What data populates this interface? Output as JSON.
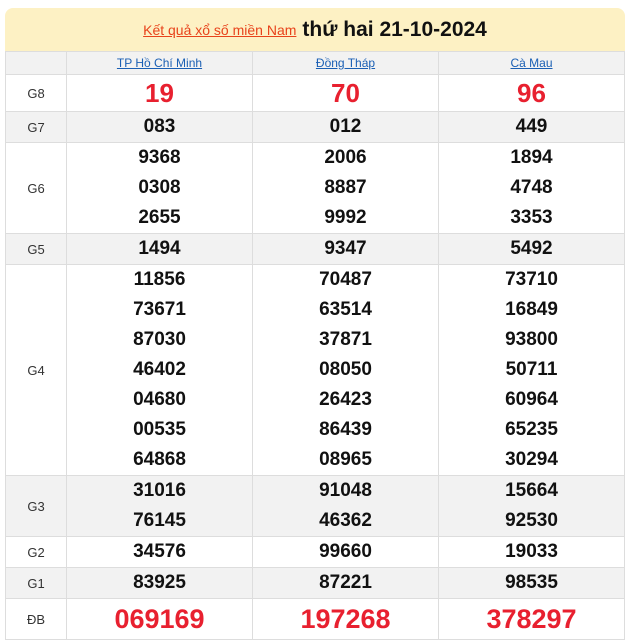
{
  "header": {
    "link_text": "Kết quả xổ số miền Nam",
    "date_text": "thứ hai 21-10-2024"
  },
  "provinces": [
    "TP Hồ Chí Minh",
    "Đồng Tháp",
    "Cà Mau"
  ],
  "colors": {
    "highlight_red": "#e8202f",
    "link_orange": "#e8431b",
    "link_blue": "#1a5fb4",
    "header_bg": "#fdf1c4"
  },
  "prizes": [
    {
      "label": "G8",
      "style": "red",
      "shaded": false,
      "values": [
        [
          "19"
        ],
        [
          "70"
        ],
        [
          "96"
        ]
      ]
    },
    {
      "label": "G7",
      "shaded": true,
      "values": [
        [
          "083"
        ],
        [
          "012"
        ],
        [
          "449"
        ]
      ]
    },
    {
      "label": "G6",
      "shaded": false,
      "values": [
        [
          "9368",
          "0308",
          "2655"
        ],
        [
          "2006",
          "8887",
          "9992"
        ],
        [
          "1894",
          "4748",
          "3353"
        ]
      ]
    },
    {
      "label": "G5",
      "shaded": true,
      "values": [
        [
          "1494"
        ],
        [
          "9347"
        ],
        [
          "5492"
        ]
      ]
    },
    {
      "label": "G4",
      "shaded": false,
      "values": [
        [
          "11856",
          "73671",
          "87030",
          "46402",
          "04680",
          "00535",
          "64868"
        ],
        [
          "70487",
          "63514",
          "37871",
          "08050",
          "26423",
          "86439",
          "08965"
        ],
        [
          "73710",
          "16849",
          "93800",
          "50711",
          "60964",
          "65235",
          "30294"
        ]
      ]
    },
    {
      "label": "G3",
      "shaded": true,
      "values": [
        [
          "31016",
          "76145"
        ],
        [
          "91048",
          "46362"
        ],
        [
          "15664",
          "92530"
        ]
      ]
    },
    {
      "label": "G2",
      "shaded": false,
      "values": [
        [
          "34576"
        ],
        [
          "99660"
        ],
        [
          "19033"
        ]
      ]
    },
    {
      "label": "G1",
      "shaded": true,
      "values": [
        [
          "83925"
        ],
        [
          "87221"
        ],
        [
          "98535"
        ]
      ]
    },
    {
      "label": "ĐB",
      "style": "db",
      "shaded": false,
      "values": [
        [
          "069169"
        ],
        [
          "197268"
        ],
        [
          "378297"
        ]
      ]
    }
  ]
}
